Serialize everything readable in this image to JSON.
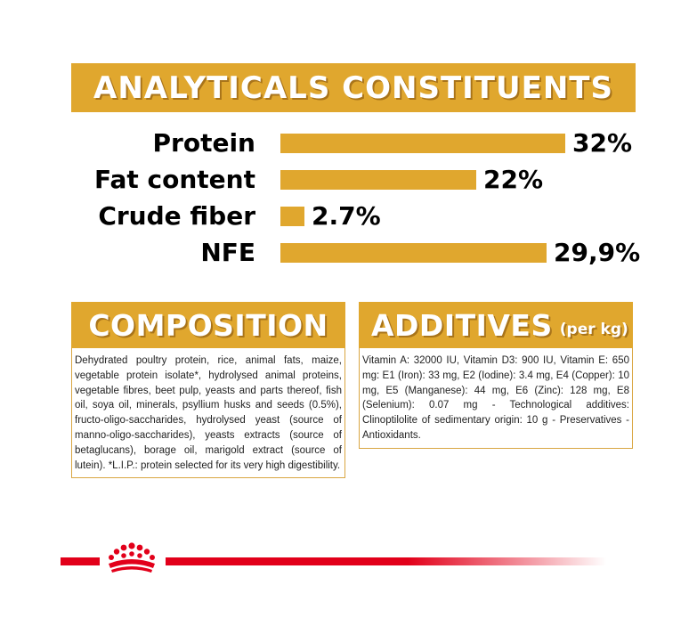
{
  "analytical": {
    "title": "ANALYTICALS CONSTITUENTS",
    "rows": [
      {
        "label": "Protein",
        "value_text": "32%",
        "value": 32
      },
      {
        "label": "Fat content",
        "value_text": "22%",
        "value": 22
      },
      {
        "label": "Crude fiber",
        "value_text": "2.7%",
        "value": 2.7
      },
      {
        "label": "NFE",
        "value_text": "29,9%",
        "value": 29.9
      }
    ]
  },
  "composition": {
    "title": "COMPOSITION",
    "text": "Dehydrated poultry protein, rice, animal fats, maize, vegetable protein isolate*, hydrolysed animal proteins, vegetable fibres, beet pulp, yeasts and parts thereof, fish oil, soya oil, minerals, psyllium husks and seeds (0.5%), fructo-oligo-saccharides, hydrolysed yeast (source of manno-oligo-saccharides), yeasts extracts (source of betaglucans), borage oil, marigold extract (source of lutein). *L.I.P.: protein selected for its very high digestibility."
  },
  "additives": {
    "title": "ADDITIVES",
    "subtitle": "(per kg)",
    "text": "Vitamin A: 32000 IU, Vitamin D3: 900 IU, Vitamin E: 650 mg: E1 (Iron): 33 mg, E2 (Iodine): 3.4 mg, E4 (Copper): 10 mg, E5 (Manganese): 44 mg, E6 (Zinc): 128 mg, E8 (Selenium): 0.07 mg - Technological additives: Clinoptilolite of sedimentary origin: 10 g - Preservatives - Antioxidants."
  },
  "colors": {
    "gold": "#e0a72e",
    "gold_shadow": "#a9741a",
    "red": "#e2001a"
  },
  "footer": {
    "logo_icon": "royal-canin-crown-icon"
  }
}
